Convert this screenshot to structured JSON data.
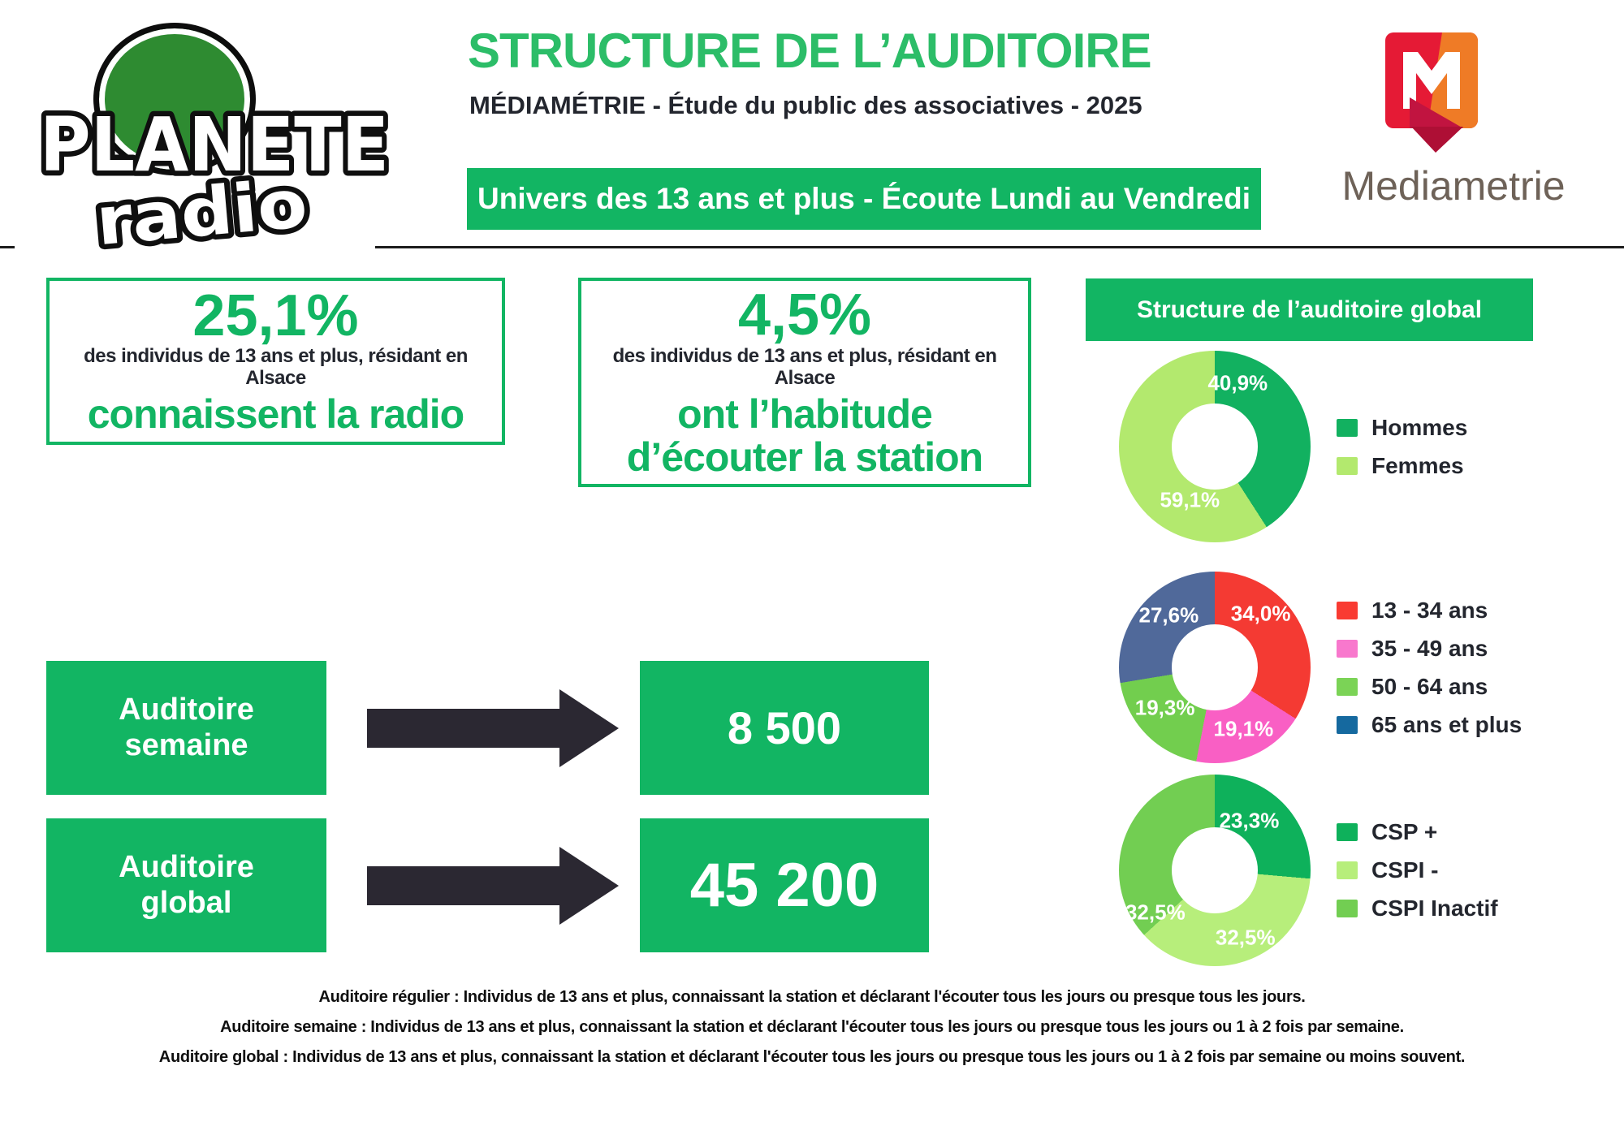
{
  "header": {
    "logo_line1": "PLANETE",
    "logo_line2": "radio",
    "title": "STRUCTURE DE L’AUDITOIRE",
    "subtitle": "MÉDIAMÉTRIE - Étude du public des associatives - 2025",
    "banner": "Univers des 13 ans et plus - Écoute Lundi au Vendredi",
    "brand_name": "Mediametrie"
  },
  "stats": [
    {
      "value": "25,1%",
      "desc": "des individus de 13 ans et plus, résidant en\nAlsace",
      "claim": "connaissent la radio"
    },
    {
      "value": "4,5%",
      "desc": "des individus de 13 ans et plus, résidant en\nAlsace",
      "claim": "ont l’habitude\nd’écouter la station"
    }
  ],
  "panel_title": "Structure de l’auditoire global",
  "flows": [
    {
      "label": "Auditoire\nsemaine",
      "value": "8 500"
    },
    {
      "label": "Auditoire\nglobal",
      "value": "45 200"
    }
  ],
  "footnotes": [
    "Auditoire régulier : Individus de 13 ans et plus, connaissant la station et déclarant l'écouter tous les jours ou presque tous les jours.",
    "Auditoire semaine : Individus de 13 ans et plus, connaissant la station et déclarant l'écouter tous les jours ou presque tous les jours ou 1 à 2 fois par semaine.",
    "Auditoire global : Individus de 13 ans et plus, connaissant la station et déclarant l'écouter tous les jours ou presque tous les jours ou 1 à 2 fois par semaine ou moins souvent."
  ],
  "colors": {
    "green": "#12b563",
    "title_green": "#2cbd68",
    "dark_text": "#23262e",
    "footnote": "#0f0f0f",
    "arrow": "#2b2832",
    "line": "#1c1c1c",
    "brand_text": "#6e6258",
    "logo_circle": "#2e8b31"
  },
  "chart_data": [
    {
      "type": "pie",
      "subtype": "donut",
      "name": "gender",
      "start_angle_deg": 0,
      "direction": "clockwise",
      "legend_position": "right",
      "segments": [
        {
          "label": "Hommes",
          "value": 40.9,
          "display": "40,9%",
          "color": "#12b160",
          "legend_color": "#12b160",
          "label_pos": {
            "x": 62,
            "y": 17
          }
        },
        {
          "label": "Femmes",
          "value": 59.1,
          "display": "59,1%",
          "color": "#b3e96e",
          "legend_color": "#b3e96e",
          "label_pos": {
            "x": 37,
            "y": 78
          }
        }
      ]
    },
    {
      "type": "pie",
      "subtype": "donut",
      "name": "age",
      "start_angle_deg": 0,
      "direction": "clockwise",
      "legend_position": "right",
      "segments": [
        {
          "label": "13 - 34 ans",
          "value": 34.0,
          "display": "34,0%",
          "color": "#f43a33",
          "legend_color": "#f93b32",
          "label_pos": {
            "x": 74,
            "y": 22
          }
        },
        {
          "label": "35 - 49 ans",
          "value": 19.1,
          "display": "19,1%",
          "color": "#f95fc4",
          "legend_color": "#f878cd",
          "label_pos": {
            "x": 65,
            "y": 82
          }
        },
        {
          "label": "50 - 64 ans",
          "value": 19.3,
          "display": "19,3%",
          "color": "#72ce4e",
          "legend_color": "#7bd356",
          "label_pos": {
            "x": 24,
            "y": 71
          }
        },
        {
          "label": "65 ans et plus",
          "value": 27.6,
          "display": "27,6%",
          "color": "#50699a",
          "legend_color": "#15699f",
          "label_pos": {
            "x": 26,
            "y": 23
          }
        }
      ]
    },
    {
      "type": "pie",
      "subtype": "donut",
      "name": "csp",
      "start_angle_deg": 0,
      "direction": "clockwise",
      "legend_position": "right",
      "segments": [
        {
          "label": "CSP +",
          "value": 23.3,
          "display": "23,3%",
          "color": "#0eb15b",
          "legend_color": "#0eb15b",
          "label_pos": {
            "x": 68,
            "y": 24
          }
        },
        {
          "label": "CSPI -",
          "value": 32.5,
          "display": "32,5%",
          "color": "#b7ee7b",
          "legend_color": "#b7ee7b",
          "label_pos": {
            "x": 66,
            "y": 85
          }
        },
        {
          "label": "CSPI Inactif",
          "value": 32.5,
          "display": "32,5%",
          "color": "#72ce52",
          "legend_color": "#72ce52",
          "label_pos": {
            "x": 19,
            "y": 72
          }
        }
      ]
    }
  ]
}
